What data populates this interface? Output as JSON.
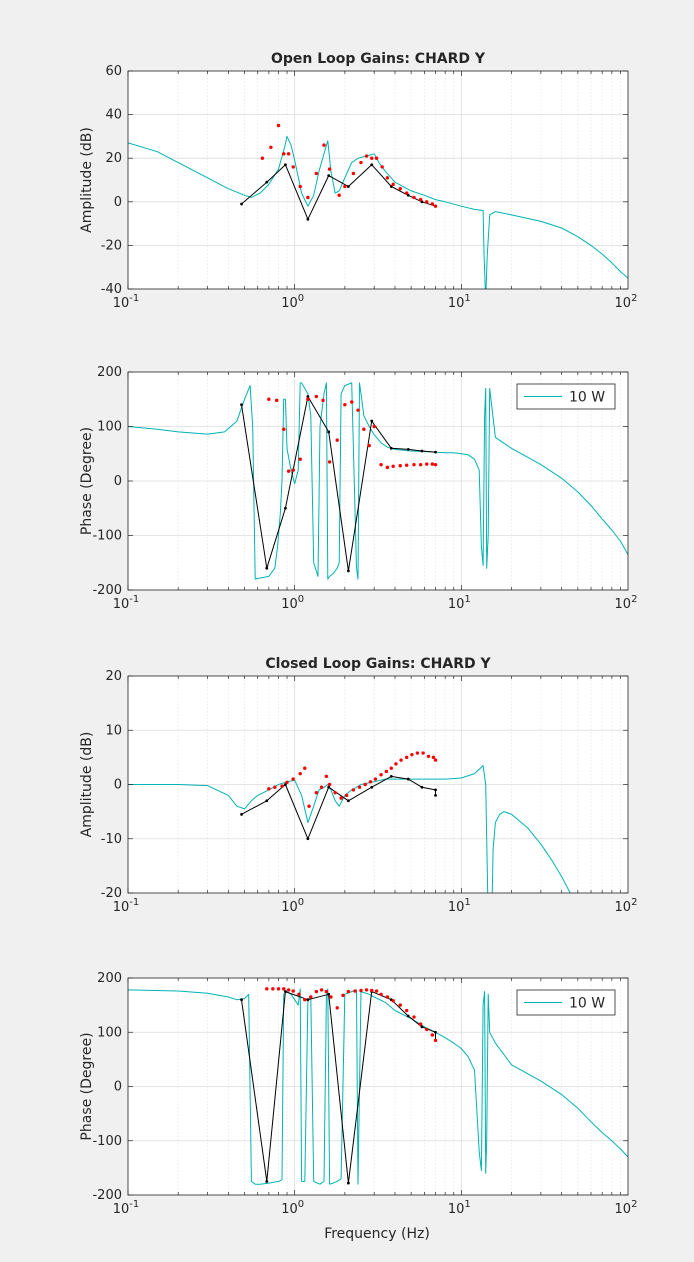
{
  "figure": {
    "xlabel": "Frequency (Hz)",
    "legend_label": "10 W"
  },
  "colors": {
    "model": "#00b3b3",
    "measured": "#000000",
    "points": "#ff0000",
    "grid": "#d9d9d9"
  },
  "chart_data": [
    {
      "type": "line",
      "title": "Open Loop Gains: CHARD Y",
      "xlabel": "",
      "ylabel": "Amplitude (dB)",
      "xscale": "log",
      "xlim": [
        0.1,
        100
      ],
      "ylim": [
        -40,
        60
      ],
      "xticks": [
        0.1,
        1,
        10,
        100
      ],
      "yticks": [
        -40,
        -20,
        0,
        20,
        40,
        60
      ],
      "grid": true,
      "legend": null,
      "series": [
        {
          "role": "model",
          "style": "line",
          "x": [
            0.1,
            0.15,
            0.2,
            0.3,
            0.4,
            0.5,
            0.55,
            0.62,
            0.7,
            0.8,
            0.87,
            0.9,
            0.95,
            1.0,
            1.1,
            1.2,
            1.3,
            1.4,
            1.5,
            1.58,
            1.65,
            1.75,
            1.85,
            2.0,
            2.2,
            2.4,
            2.7,
            3.0,
            3.2,
            3.5,
            4.0,
            5.0,
            6.0,
            7.0,
            8.0,
            10.0,
            12.0,
            13.5,
            13.7,
            14.0,
            14.3,
            14.8,
            16,
            20,
            30,
            40,
            50,
            60,
            70,
            80,
            90,
            100
          ],
          "y": [
            27,
            23,
            18,
            11,
            6,
            3,
            2,
            4,
            8,
            15,
            25,
            30,
            26,
            19,
            4,
            -2,
            3,
            14,
            22,
            28,
            14,
            4,
            5,
            11,
            18,
            20,
            21,
            22,
            18,
            14,
            9,
            5,
            3,
            1,
            0,
            -2,
            -3.5,
            -4,
            -25,
            -45,
            -25,
            -6,
            -4.5,
            -6,
            -9,
            -12,
            -16,
            -20,
            -24,
            -28,
            -32,
            -35
          ]
        },
        {
          "role": "measured",
          "style": "line+marker",
          "x": [
            0.48,
            0.68,
            0.88,
            1.2,
            1.6,
            2.1,
            2.9,
            3.8,
            4.8,
            5.8,
            7.0
          ],
          "y": [
            -1,
            9,
            17,
            -8,
            12,
            7,
            17,
            7,
            3,
            0,
            -2
          ]
        },
        {
          "role": "points",
          "style": "marker",
          "x": [
            0.64,
            0.72,
            0.8,
            0.86,
            0.92,
            0.98,
            1.08,
            1.2,
            1.35,
            1.5,
            1.62,
            1.85,
            2.0,
            2.25,
            2.5,
            2.7,
            2.9,
            3.1,
            3.35,
            3.6,
            3.9,
            4.3,
            4.7,
            5.2,
            5.7,
            6.2,
            6.7,
            7.0
          ],
          "y": [
            20,
            25,
            35,
            22,
            22,
            16,
            7,
            2,
            13,
            26,
            15,
            3,
            7,
            13,
            18,
            21,
            20,
            20,
            16,
            11,
            8,
            6,
            4,
            2,
            1,
            0,
            -1,
            -2
          ]
        }
      ]
    },
    {
      "type": "line",
      "title": "",
      "xlabel": "",
      "ylabel": "Phase (Degree)",
      "xscale": "log",
      "xlim": [
        0.1,
        100
      ],
      "ylim": [
        -200,
        200
      ],
      "xticks": [
        0.1,
        1,
        10,
        100
      ],
      "yticks": [
        -200,
        -100,
        0,
        100,
        200
      ],
      "grid": true,
      "legend": "top-right",
      "series": [
        {
          "role": "model",
          "style": "line",
          "x": [
            0.1,
            0.15,
            0.2,
            0.3,
            0.38,
            0.45,
            0.5,
            0.54,
            0.56,
            0.58,
            0.62,
            0.7,
            0.76,
            0.79,
            0.82,
            0.84,
            0.86,
            0.88,
            0.9,
            0.95,
            1.0,
            1.05,
            1.08,
            1.1,
            1.15,
            1.2,
            1.25,
            1.3,
            1.38,
            1.42,
            1.5,
            1.55,
            1.58,
            1.62,
            1.7,
            1.8,
            1.85,
            1.9,
            2.0,
            2.2,
            2.35,
            2.4,
            2.45,
            2.5,
            2.6,
            2.8,
            3.0,
            3.3,
            3.6,
            4,
            5,
            6,
            7,
            8,
            9,
            10,
            11,
            12,
            12.8,
            13.2,
            13.5,
            13.8,
            14.0,
            14.2,
            14.5,
            14.8,
            16,
            20,
            30,
            40,
            50,
            60,
            70,
            80,
            90,
            100
          ],
          "y": [
            100,
            95,
            90,
            86,
            90,
            110,
            150,
            175,
            100,
            -180,
            -178,
            -175,
            -160,
            -120,
            -60,
            0,
            150,
            150,
            60,
            20,
            -5,
            20,
            180,
            180,
            170,
            160,
            120,
            -150,
            -175,
            100,
            160,
            180,
            -180,
            -175,
            -170,
            -160,
            -150,
            160,
            175,
            180,
            -160,
            -180,
            180,
            160,
            120,
            100,
            85,
            70,
            62,
            58,
            55,
            54,
            53,
            52,
            52,
            50,
            48,
            40,
            20,
            -120,
            -155,
            120,
            170,
            -160,
            -100,
            170,
            80,
            60,
            30,
            5,
            -20,
            -45,
            -70,
            -90,
            -110,
            -135
          ]
        },
        {
          "role": "measured",
          "style": "line+marker",
          "x": [
            0.48,
            0.68,
            0.88,
            1.2,
            1.6,
            2.1,
            2.9,
            3.8,
            4.8,
            5.8,
            7.0
          ],
          "y": [
            140,
            -160,
            -50,
            155,
            90,
            -165,
            110,
            60,
            58,
            55,
            53
          ]
        },
        {
          "role": "points",
          "style": "marker",
          "x": [
            0.7,
            0.78,
            0.86,
            0.92,
            0.98,
            1.08,
            1.2,
            1.35,
            1.48,
            1.62,
            1.8,
            2.0,
            2.2,
            2.4,
            2.6,
            2.8,
            3.0,
            3.3,
            3.6,
            3.9,
            4.3,
            4.7,
            5.2,
            5.7,
            6.2,
            6.7,
            7.0
          ],
          "y": [
            150,
            148,
            95,
            18,
            20,
            40,
            150,
            155,
            148,
            35,
            75,
            140,
            145,
            130,
            95,
            65,
            100,
            30,
            25,
            27,
            28,
            29,
            30,
            30,
            31,
            31,
            30
          ]
        }
      ]
    },
    {
      "type": "line",
      "title": "Closed Loop Gains: CHARD Y",
      "xlabel": "",
      "ylabel": "Amplitude (dB)",
      "xscale": "log",
      "xlim": [
        0.1,
        100
      ],
      "ylim": [
        -20,
        20
      ],
      "xticks": [
        0.1,
        1,
        10,
        100
      ],
      "yticks": [
        -20,
        -10,
        0,
        10,
        20
      ],
      "grid": true,
      "legend": null,
      "series": [
        {
          "role": "model",
          "style": "line",
          "x": [
            0.1,
            0.2,
            0.3,
            0.4,
            0.45,
            0.5,
            0.55,
            0.6,
            0.7,
            0.8,
            0.9,
            1.0,
            1.1,
            1.2,
            1.3,
            1.4,
            1.5,
            1.58,
            1.65,
            1.75,
            1.85,
            2.0,
            2.2,
            2.5,
            3.0,
            3.5,
            4.0,
            5.0,
            6.0,
            7.0,
            8.0,
            10.0,
            12.0,
            13.0,
            13.5,
            14.0,
            14.5,
            15.0,
            15.5,
            16.0,
            17.0,
            18.0,
            20,
            25,
            30,
            35,
            40,
            45,
            50
          ],
          "y": [
            0,
            0,
            -0.2,
            -2,
            -4,
            -4.5,
            -3,
            -2,
            -1,
            0,
            0.5,
            0.8,
            -2,
            -7,
            -4,
            -1,
            -0.5,
            0,
            -1,
            -3,
            -4,
            -2,
            -1,
            0,
            0.5,
            1,
            1,
            1,
            1,
            1,
            1,
            1.2,
            2,
            3,
            3.5,
            0,
            -25,
            -35,
            -12,
            -7,
            -5.5,
            -5,
            -5.5,
            -8,
            -11,
            -14,
            -17,
            -20,
            -23
          ]
        },
        {
          "role": "measured",
          "style": "line+marker",
          "x": [
            0.48,
            0.68,
            0.88,
            1.2,
            1.6,
            2.1,
            2.9,
            3.8,
            4.8,
            5.8,
            7.0,
            7.0
          ],
          "y": [
            -5.5,
            -3,
            0,
            -10,
            -0.5,
            -3,
            -0.5,
            1.5,
            1,
            -0.5,
            -1,
            -2
          ]
        },
        {
          "role": "points",
          "style": "marker",
          "x": [
            0.7,
            0.76,
            0.84,
            0.9,
            0.98,
            1.08,
            1.15,
            1.22,
            1.35,
            1.45,
            1.55,
            1.62,
            1.75,
            1.9,
            2.05,
            2.25,
            2.45,
            2.65,
            2.85,
            3.05,
            3.3,
            3.55,
            3.8,
            4.05,
            4.35,
            4.7,
            5.05,
            5.45,
            5.9,
            6.35,
            6.8,
            7.0
          ],
          "y": [
            -0.8,
            -0.5,
            -0.3,
            0.4,
            1.0,
            2.0,
            3.0,
            -4.0,
            -1.5,
            -0.5,
            1.5,
            0,
            -1.5,
            -2.5,
            -2,
            -1,
            -0.5,
            0,
            0.5,
            1.0,
            1.8,
            2.4,
            3.0,
            3.8,
            4.5,
            5.0,
            5.5,
            5.8,
            5.8,
            5.2,
            5.0,
            4.5
          ]
        }
      ]
    },
    {
      "type": "line",
      "title": "",
      "xlabel": "Frequency (Hz)",
      "ylabel": "Phase (Degree)",
      "xscale": "log",
      "xlim": [
        0.1,
        100
      ],
      "ylim": [
        -200,
        200
      ],
      "xticks": [
        0.1,
        1,
        10,
        100
      ],
      "yticks": [
        -200,
        -100,
        0,
        100,
        200
      ],
      "grid": true,
      "legend": "top-right",
      "series": [
        {
          "role": "model",
          "style": "line",
          "x": [
            0.1,
            0.2,
            0.3,
            0.4,
            0.45,
            0.5,
            0.53,
            0.55,
            0.58,
            0.62,
            0.7,
            0.8,
            0.84,
            0.86,
            0.9,
            0.95,
            1.0,
            1.05,
            1.08,
            1.1,
            1.15,
            1.2,
            1.25,
            1.3,
            1.42,
            1.5,
            1.55,
            1.58,
            1.62,
            1.7,
            1.8,
            1.9,
            2.0,
            2.2,
            2.35,
            2.4,
            2.5,
            2.8,
            3.0,
            3.5,
            4,
            5,
            6,
            7,
            8,
            9,
            10,
            11,
            12,
            12.8,
            13.2,
            13.5,
            13.8,
            14.0,
            14.2,
            14.5,
            14.8,
            16,
            20,
            30,
            40,
            50,
            60,
            70,
            80,
            90,
            100
          ],
          "y": [
            178,
            176,
            172,
            165,
            160,
            162,
            170,
            -175,
            -180,
            -180,
            -178,
            -175,
            -172,
            170,
            175,
            170,
            160,
            150,
            180,
            -175,
            -175,
            160,
            165,
            -175,
            -180,
            -175,
            165,
            180,
            -180,
            -178,
            -175,
            -170,
            170,
            175,
            178,
            -180,
            175,
            170,
            165,
            155,
            140,
            125,
            110,
            100,
            90,
            80,
            70,
            55,
            30,
            -120,
            -155,
            150,
            175,
            -160,
            -100,
            170,
            100,
            80,
            40,
            10,
            -15,
            -40,
            -65,
            -85,
            -100,
            -115,
            -130
          ]
        },
        {
          "role": "measured",
          "style": "line+marker",
          "x": [
            0.48,
            0.68,
            0.88,
            1.2,
            1.6,
            2.1,
            2.9,
            3.8,
            4.8,
            5.8,
            7.0,
            7.0
          ],
          "y": [
            160,
            -175,
            175,
            160,
            170,
            -178,
            175,
            160,
            130,
            110,
            100,
            85
          ]
        },
        {
          "role": "points",
          "style": "marker",
          "x": [
            0.68,
            0.74,
            0.8,
            0.86,
            0.92,
            0.98,
            1.06,
            1.15,
            1.25,
            1.35,
            1.45,
            1.55,
            1.65,
            1.8,
            1.95,
            2.1,
            2.3,
            2.5,
            2.7,
            2.9,
            3.1,
            3.3,
            3.6,
            3.9,
            4.3,
            4.7,
            5.2,
            5.7,
            6.2,
            6.7,
            7.0
          ],
          "y": [
            180,
            180,
            180,
            180,
            178,
            176,
            170,
            160,
            165,
            175,
            178,
            175,
            165,
            145,
            168,
            175,
            176,
            177,
            178,
            177,
            176,
            170,
            165,
            158,
            150,
            140,
            128,
            115,
            105,
            95,
            85
          ]
        }
      ]
    }
  ]
}
